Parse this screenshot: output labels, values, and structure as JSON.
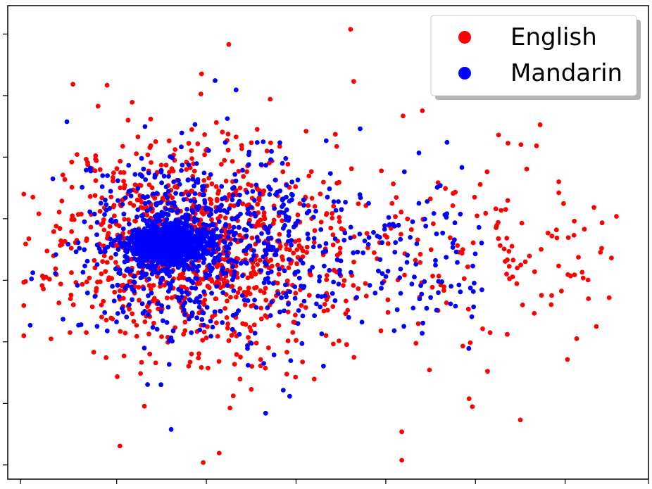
{
  "chart_data": {
    "type": "scatter",
    "title": "",
    "xlabel": "",
    "ylabel": "",
    "xlim": [
      0,
      100
    ],
    "ylim": [
      0,
      100
    ],
    "x_ticks": [
      2,
      17,
      31,
      45,
      59,
      73,
      87,
      100
    ],
    "y_ticks": [
      3,
      16,
      29,
      42,
      55,
      68,
      81,
      94
    ],
    "grid": false,
    "legend_position": "top-right",
    "series": [
      {
        "name": "English",
        "color": "#ff0000",
        "seed": 11,
        "core": {
          "cx": 24,
          "cy": 49,
          "sx": 2.4,
          "sy": 2.0,
          "n": 60
        },
        "cluster": {
          "cx": 28,
          "cy": 50,
          "sx": 10.0,
          "sy": 11.5,
          "n": 880
        },
        "tail": {
          "x_from": 38,
          "x_to": 96,
          "cy": 46,
          "sy": 10.5,
          "n": 230
        },
        "outliers": [
          {
            "x": 53.5,
            "y": 95.0
          },
          {
            "x": 34.5,
            "y": 91.8
          },
          {
            "x": 54.0,
            "y": 84.0
          },
          {
            "x": 61.7,
            "y": 76.7
          },
          {
            "x": 64.7,
            "y": 77.8
          },
          {
            "x": 15.5,
            "y": 83.2
          },
          {
            "x": 95.0,
            "y": 55.5
          },
          {
            "x": 90.0,
            "y": 52.8
          },
          {
            "x": 86.0,
            "y": 62.8
          },
          {
            "x": 81.0,
            "y": 65.5
          },
          {
            "x": 61.5,
            "y": 4.0
          },
          {
            "x": 61.5,
            "y": 10.0
          },
          {
            "x": 30.5,
            "y": 3.5
          },
          {
            "x": 17.5,
            "y": 7.0
          },
          {
            "x": 33.0,
            "y": 5.5
          },
          {
            "x": 80.0,
            "y": 12.5
          },
          {
            "x": 72.0,
            "y": 17.0
          },
          {
            "x": 72.5,
            "y": 15.3
          }
        ]
      },
      {
        "name": "Mandarin",
        "color": "#0000ff",
        "seed": 29,
        "core": {
          "cx": 25,
          "cy": 49.5,
          "sx": 3.0,
          "sy": 2.2,
          "n": 950
        },
        "cluster": {
          "cx": 28,
          "cy": 50,
          "sx": 9.0,
          "sy": 10.0,
          "n": 640
        },
        "tail": {
          "x_from": 40,
          "x_to": 74,
          "cy": 47,
          "sy": 9.0,
          "n": 190
        },
        "outliers": [
          {
            "x": 3.5,
            "y": 32.5
          },
          {
            "x": 74.0,
            "y": 40.0
          },
          {
            "x": 70.0,
            "y": 48.0
          },
          {
            "x": 67.5,
            "y": 62.0
          },
          {
            "x": 55.0,
            "y": 74.0
          },
          {
            "x": 43.0,
            "y": 18.8
          },
          {
            "x": 44.0,
            "y": 17.5
          },
          {
            "x": 25.5,
            "y": 10.5
          }
        ]
      }
    ]
  }
}
